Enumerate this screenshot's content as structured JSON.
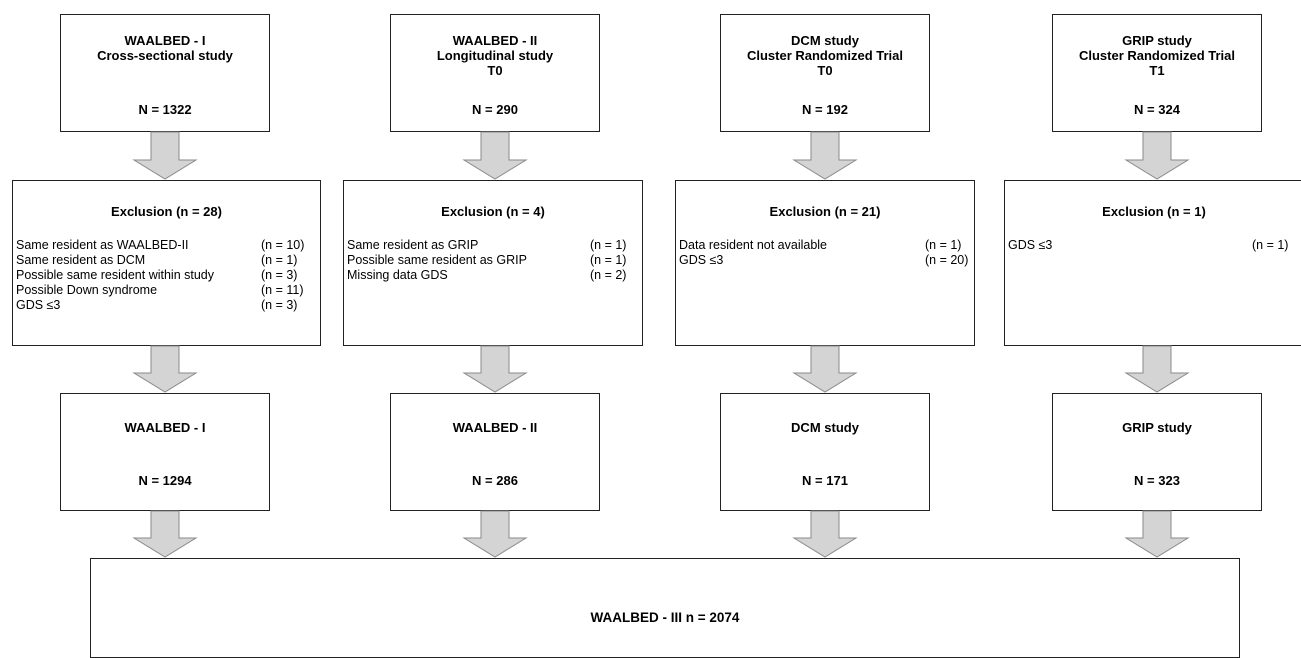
{
  "studies": [
    {
      "title_lines": [
        "WAALBED - I",
        "Cross-sectional study"
      ],
      "n_label": "N = 1322",
      "exclusion_title": "Exclusion (n = 28)",
      "exclusions": [
        {
          "reason": "Same resident as  WAALBED-II",
          "count": "(n = 10)"
        },
        {
          "reason": "Same resident as DCM",
          "count": "(n = 1)"
        },
        {
          "reason": "Possible same resident within study",
          "count": "(n = 3)"
        },
        {
          "reason": "Possible Down syndrome",
          "count": "(n = 11)"
        },
        {
          "reason": "GDS ≤3",
          "count": "(n = 3)"
        }
      ],
      "result_title": "WAALBED - I",
      "result_n": "N = 1294"
    },
    {
      "title_lines": [
        "WAALBED - II",
        "Longitudinal study",
        "T0"
      ],
      "n_label": "N = 290",
      "exclusion_title": "Exclusion (n = 4)",
      "exclusions": [
        {
          "reason": "Same resident as GRIP",
          "count": "(n = 1)"
        },
        {
          "reason": "Possible same resident as GRIP",
          "count": "(n = 1)"
        },
        {
          "reason": "Missing data GDS",
          "count": "(n = 2)"
        }
      ],
      "result_title": "WAALBED - II",
      "result_n": "N = 286"
    },
    {
      "title_lines": [
        "DCM study",
        "Cluster Randomized Trial",
        "T0"
      ],
      "n_label": "N = 192",
      "exclusion_title": "Exclusion (n = 21)",
      "exclusions": [
        {
          "reason": "Data resident not available",
          "count": "(n = 1)"
        },
        {
          "reason": "GDS ≤3",
          "count": "(n = 20)"
        }
      ],
      "result_title": "DCM study",
      "result_n": "N = 171"
    },
    {
      "title_lines": [
        "GRIP study",
        "Cluster Randomized Trial",
        "T1"
      ],
      "n_label": "N = 324",
      "exclusion_title": "Exclusion (n = 1)",
      "exclusions": [
        {
          "reason": "GDS ≤3",
          "count": "(n = 1)"
        }
      ],
      "result_title": "GRIP study",
      "result_n": "N = 323"
    }
  ],
  "final": {
    "label": "WAALBED - III n = 2074"
  },
  "colors": {
    "arrow_fill": "#d4d4d4",
    "arrow_stroke": "#8a8a8a",
    "box_border": "#222222"
  }
}
